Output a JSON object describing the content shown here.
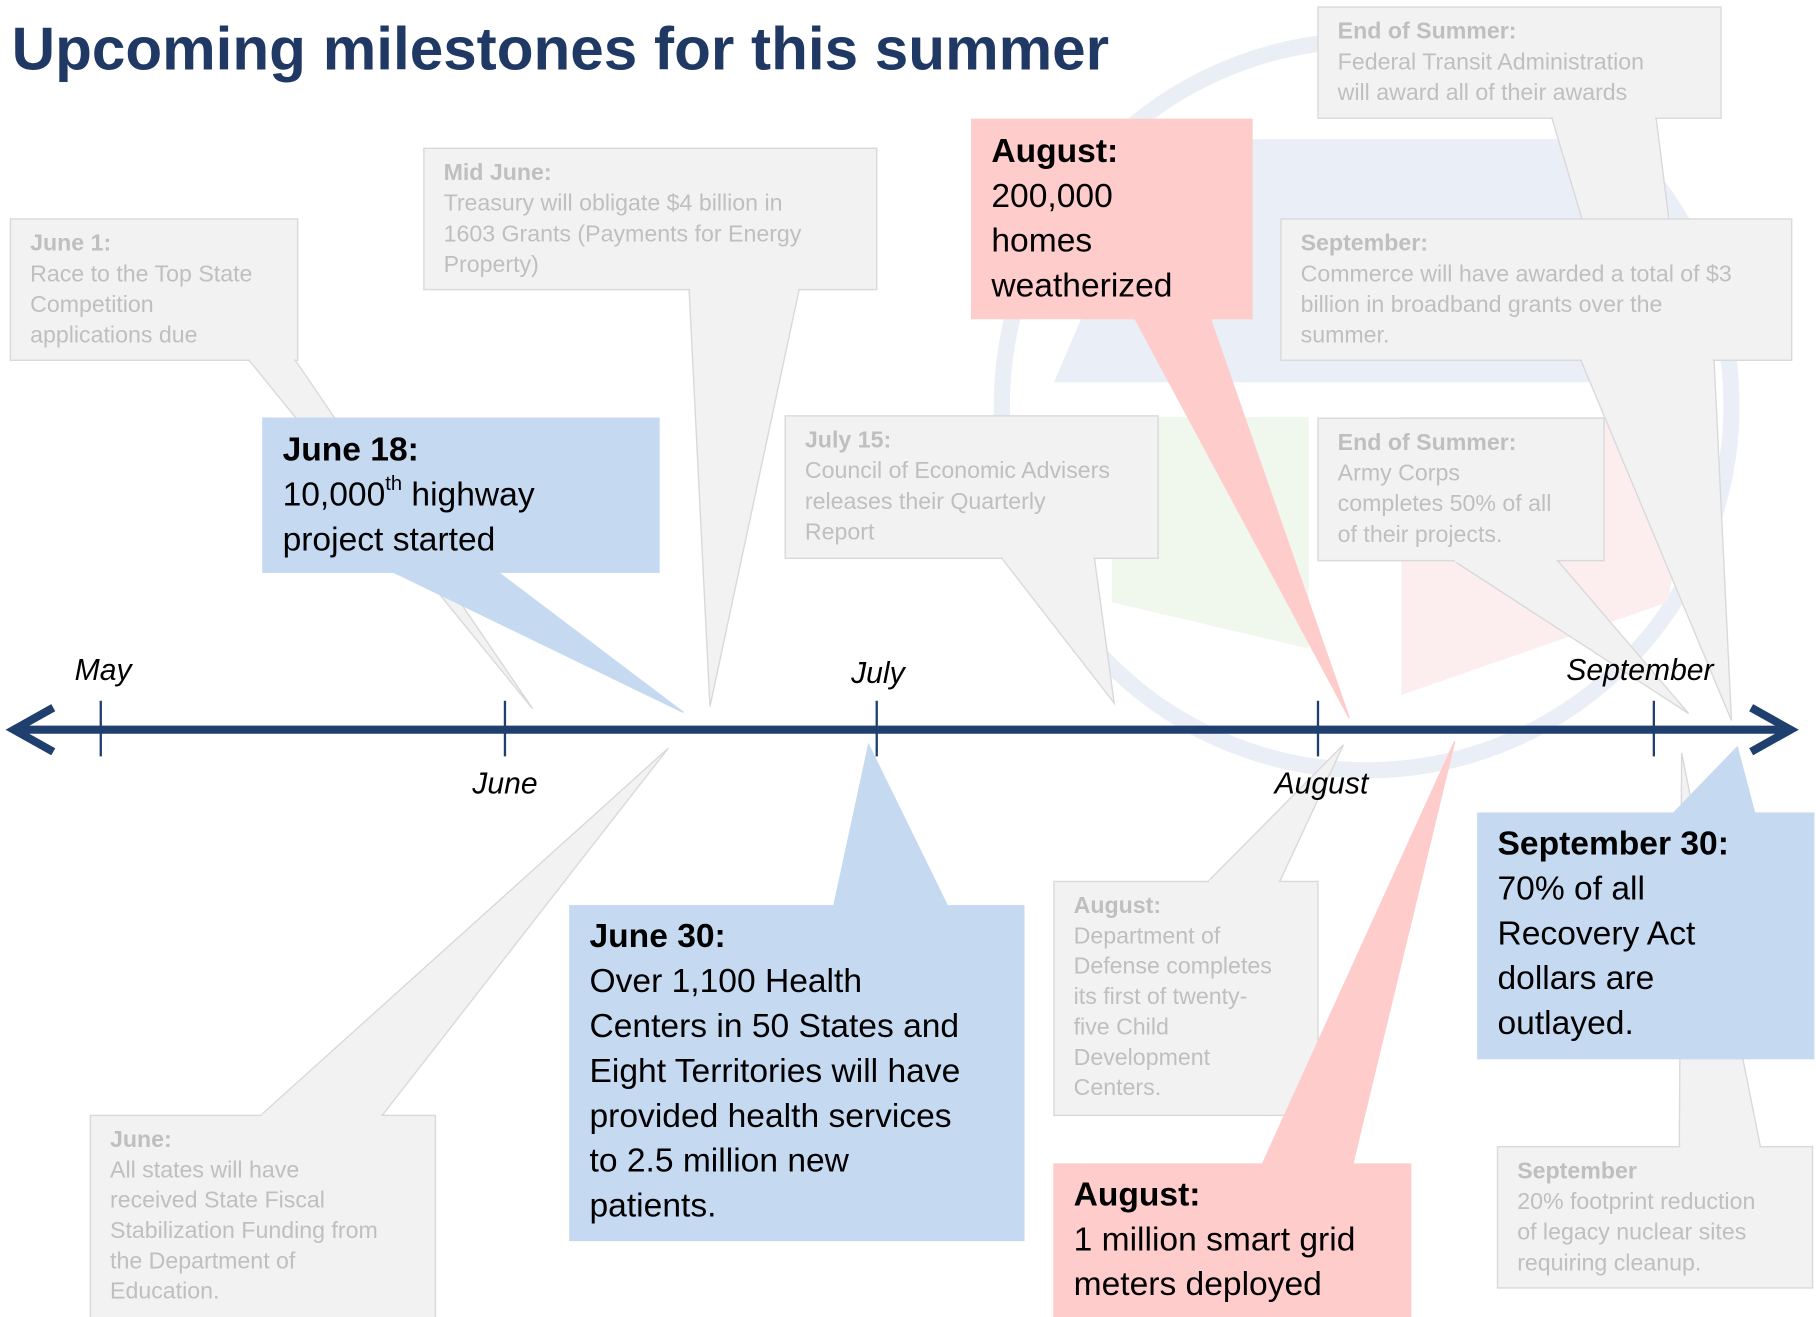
{
  "title": "Upcoming milestones for this summer",
  "timeline": {
    "months": [
      "May",
      "June",
      "July",
      "August",
      "September"
    ],
    "color": "#1f3f6e"
  },
  "callouts": [
    {
      "heading": "June 1:",
      "lines": [
        "Race to the Top State",
        "Competition",
        "applications due"
      ],
      "color": "#f2f2f2",
      "text_color": "#bfbfbf"
    },
    {
      "heading": "Mid June:",
      "lines": [
        "Treasury will obligate $4 billion in",
        "1603 Grants (Payments for Energy",
        "Property)"
      ],
      "color": "#f2f2f2",
      "text_color": "#bfbfbf"
    },
    {
      "heading": "July 15:",
      "lines": [
        "Council of Economic Advisers",
        "releases their Quarterly",
        "Report"
      ],
      "color": "#f2f2f2",
      "text_color": "#bfbfbf"
    },
    {
      "heading": "End of Summer:",
      "lines": [
        "Federal Transit Administration",
        "will award all of their awards"
      ],
      "color": "#f2f2f2",
      "text_color": "#bfbfbf"
    },
    {
      "heading": "September:",
      "lines": [
        "Commerce will have awarded a total of $3",
        "billion in broadband grants over the",
        "summer."
      ],
      "color": "#f2f2f2",
      "text_color": "#bfbfbf"
    },
    {
      "heading": "End of Summer:",
      "lines": [
        "Army Corps",
        "completes 50% of all",
        "of their projects."
      ],
      "color": "#f2f2f2",
      "text_color": "#bfbfbf"
    },
    {
      "heading": "June:",
      "lines": [
        "All states will have",
        "received State Fiscal",
        "Stabilization Funding from",
        "the Department of",
        "Education."
      ],
      "color": "#f2f2f2",
      "text_color": "#bfbfbf"
    },
    {
      "heading": "August:",
      "lines": [
        "Department of",
        "Defense completes",
        "its first of twenty-",
        "five Child",
        "Development",
        "Centers."
      ],
      "color": "#f2f2f2",
      "text_color": "#bfbfbf"
    },
    {
      "heading": "September",
      "lines": [
        "20% footprint reduction",
        "of  legacy nuclear sites",
        "requiring cleanup."
      ],
      "color": "#f2f2f2",
      "text_color": "#bfbfbf"
    },
    {
      "heading": "June 18:",
      "lines": [
        [
          "10,000",
          "th",
          " highway"
        ],
        "project started"
      ],
      "color": "#c5d9f1",
      "text_color": "#000000"
    },
    {
      "heading": "August:",
      "lines": [
        "200,000",
        "homes",
        "weatherized"
      ],
      "color": "#ffcccc",
      "text_color": "#000000"
    },
    {
      "heading": "June 30:",
      "lines": [
        "Over 1,100 Health",
        "Centers in 50 States and",
        "Eight Territories will have",
        "provided health services",
        "to 2.5 million new",
        "patients."
      ],
      "color": "#c5d9f1",
      "text_color": "#000000"
    },
    {
      "heading": "August:",
      "lines": [
        "1 million smart grid",
        "meters deployed"
      ],
      "color": "#ffcccc",
      "text_color": "#000000"
    },
    {
      "heading": "September 30:",
      "lines": [
        "70% of all",
        "Recovery Act",
        "dollars are",
        "outlayed."
      ],
      "color": "#c5d9f1",
      "text_color": "#000000"
    }
  ]
}
